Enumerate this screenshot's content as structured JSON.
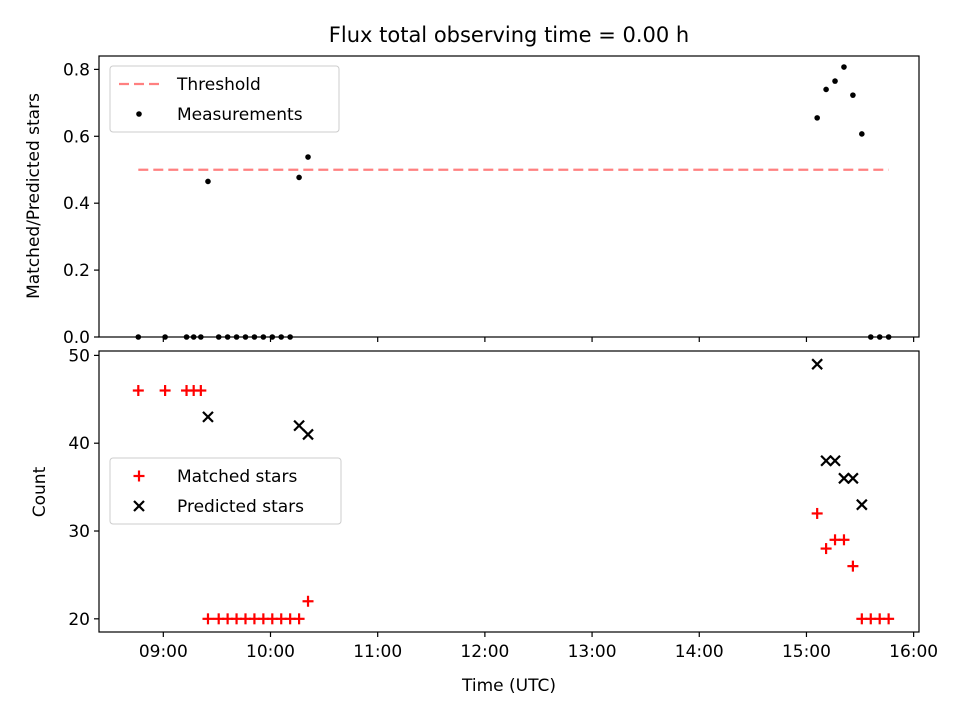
{
  "chart_data": [
    {
      "type": "scatter",
      "title": "Flux total observing time = 0.00 h",
      "xlabel": "",
      "ylabel": "Matched/Predicted stars",
      "ylim": [
        0.0,
        0.84
      ],
      "yticks": [
        "0.0",
        "0.2",
        "0.4",
        "0.6",
        "0.8"
      ],
      "grid": false,
      "legend": "top-left",
      "series": [
        {
          "name": "Threshold",
          "kind": "dashed-line",
          "color": "#ff8080",
          "x": [
            "08:46",
            "15:46"
          ],
          "y": [
            0.5,
            0.5
          ]
        },
        {
          "name": "Measurements",
          "kind": "points",
          "color": "#000000",
          "x": [
            "08:46",
            "09:01",
            "09:13",
            "09:17",
            "09:21",
            "09:25",
            "09:31",
            "09:36",
            "09:41",
            "09:46",
            "09:51",
            "09:56",
            "10:01",
            "10:06",
            "10:11",
            "10:16",
            "10:21",
            "15:06",
            "15:11",
            "15:16",
            "15:21",
            "15:26",
            "15:31",
            "15:36",
            "15:41",
            "15:46"
          ],
          "y": [
            0.0,
            0.0,
            0.0,
            0.0,
            0.0,
            0.465,
            0.0,
            0.0,
            0.0,
            0.0,
            0.0,
            0.0,
            0.0,
            0.0,
            0.0,
            0.477,
            0.538,
            0.655,
            0.74,
            0.765,
            0.807,
            0.723,
            0.607,
            0.0,
            0.0,
            0.0
          ]
        }
      ]
    },
    {
      "type": "scatter",
      "title": "",
      "xlabel": "Time (UTC)",
      "ylabel": "Count",
      "ylim": [
        18.5,
        50.5
      ],
      "yticks": [
        "20",
        "30",
        "40",
        "50"
      ],
      "xticks": [
        "09:00",
        "10:00",
        "11:00",
        "12:00",
        "13:00",
        "14:00",
        "15:00",
        "16:00"
      ],
      "grid": false,
      "legend": "center-left",
      "series": [
        {
          "name": "Matched stars",
          "marker": "+",
          "color": "#ff0000",
          "x": [
            "08:46",
            "09:01",
            "09:13",
            "09:17",
            "09:21",
            "09:25",
            "09:31",
            "09:36",
            "09:41",
            "09:46",
            "09:51",
            "09:56",
            "10:01",
            "10:06",
            "10:11",
            "10:16",
            "10:21",
            "15:06",
            "15:11",
            "15:16",
            "15:21",
            "15:26",
            "15:31",
            "15:36",
            "15:41",
            "15:46"
          ],
          "y": [
            46,
            46,
            46,
            46,
            46,
            20,
            20,
            20,
            20,
            20,
            20,
            20,
            20,
            20,
            20,
            20,
            22,
            32,
            28,
            29,
            29,
            26,
            20,
            20,
            20,
            20
          ]
        },
        {
          "name": "Predicted stars",
          "marker": "x",
          "color": "#000000",
          "x": [
            "09:25",
            "10:16",
            "10:21",
            "15:06",
            "15:11",
            "15:16",
            "15:21",
            "15:26",
            "15:31"
          ],
          "y": [
            43,
            42,
            41,
            49,
            38,
            38,
            36,
            36,
            33
          ]
        }
      ]
    }
  ]
}
